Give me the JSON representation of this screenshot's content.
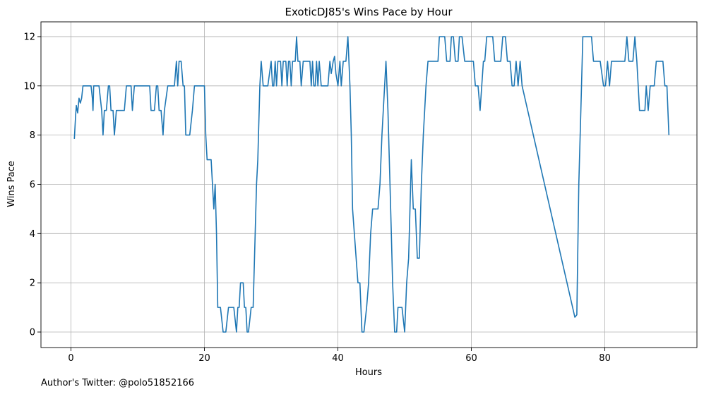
{
  "credit": "Author's Twitter: @polo51852166",
  "chart_data": {
    "type": "line",
    "title": "ExoticDJ85's Wins Pace by Hour",
    "xlabel": "Hours",
    "ylabel": "Wins Pace",
    "xlim": [
      -4.5,
      93.8
    ],
    "ylim": [
      -0.63,
      12.6
    ],
    "xticks": [
      0,
      20,
      40,
      60,
      80
    ],
    "yticks": [
      0,
      2,
      4,
      6,
      8,
      10,
      12
    ],
    "grid": true,
    "line_color": "#1f77b4",
    "series": [
      {
        "name": "",
        "points": [
          [
            0.5,
            7.85
          ],
          [
            0.7,
            8.8
          ],
          [
            0.8,
            9.2
          ],
          [
            1.0,
            8.9
          ],
          [
            1.2,
            9.5
          ],
          [
            1.4,
            9.3
          ],
          [
            1.6,
            9.5
          ],
          [
            1.8,
            10
          ],
          [
            2.5,
            10
          ],
          [
            3.0,
            10
          ],
          [
            3.2,
            9.5
          ],
          [
            3.3,
            9
          ],
          [
            3.4,
            10
          ],
          [
            4.2,
            10
          ],
          [
            4.6,
            9
          ],
          [
            4.8,
            8
          ],
          [
            5.0,
            9
          ],
          [
            5.3,
            9
          ],
          [
            5.6,
            10
          ],
          [
            5.8,
            10
          ],
          [
            6.0,
            9
          ],
          [
            6.3,
            9
          ],
          [
            6.5,
            8
          ],
          [
            6.8,
            9
          ],
          [
            7.5,
            9
          ],
          [
            8.0,
            9
          ],
          [
            8.3,
            10
          ],
          [
            8.8,
            10
          ],
          [
            9.0,
            10
          ],
          [
            9.2,
            9
          ],
          [
            9.5,
            10
          ],
          [
            10.0,
            10
          ],
          [
            11.0,
            10
          ],
          [
            11.5,
            10
          ],
          [
            11.8,
            10
          ],
          [
            12.0,
            9
          ],
          [
            12.5,
            9
          ],
          [
            12.8,
            10
          ],
          [
            13.0,
            10
          ],
          [
            13.2,
            9
          ],
          [
            13.5,
            9
          ],
          [
            13.8,
            8
          ],
          [
            14.0,
            9
          ],
          [
            14.5,
            10
          ],
          [
            15.0,
            10
          ],
          [
            15.5,
            10
          ],
          [
            15.8,
            11
          ],
          [
            16.0,
            10
          ],
          [
            16.2,
            11
          ],
          [
            16.5,
            11
          ],
          [
            16.8,
            10
          ],
          [
            17.0,
            10
          ],
          [
            17.2,
            8
          ],
          [
            17.5,
            8
          ],
          [
            17.8,
            8
          ],
          [
            18.2,
            9
          ],
          [
            18.5,
            10
          ],
          [
            19.0,
            10
          ],
          [
            20.0,
            10
          ],
          [
            20.2,
            8
          ],
          [
            20.4,
            7
          ],
          [
            20.6,
            7
          ],
          [
            21.0,
            7
          ],
          [
            21.2,
            6
          ],
          [
            21.4,
            5
          ],
          [
            21.6,
            6
          ],
          [
            21.8,
            4
          ],
          [
            22.0,
            1
          ],
          [
            22.4,
            1
          ],
          [
            22.8,
            0
          ],
          [
            23.2,
            0
          ],
          [
            23.6,
            1
          ],
          [
            24.0,
            1
          ],
          [
            24.4,
            1
          ],
          [
            24.8,
            0
          ],
          [
            25.0,
            1
          ],
          [
            25.2,
            1
          ],
          [
            25.4,
            2
          ],
          [
            25.8,
            2
          ],
          [
            26.0,
            1
          ],
          [
            26.2,
            1
          ],
          [
            26.4,
            0
          ],
          [
            26.6,
            0
          ],
          [
            27.0,
            1
          ],
          [
            27.3,
            1
          ],
          [
            27.8,
            6
          ],
          [
            28.0,
            7
          ],
          [
            28.3,
            10
          ],
          [
            28.5,
            11
          ],
          [
            28.8,
            10
          ],
          [
            29.0,
            10
          ],
          [
            29.5,
            10
          ],
          [
            30.0,
            11
          ],
          [
            30.2,
            10
          ],
          [
            30.4,
            10
          ],
          [
            30.6,
            11
          ],
          [
            30.8,
            10
          ],
          [
            31.0,
            11
          ],
          [
            31.4,
            11
          ],
          [
            31.6,
            10
          ],
          [
            31.8,
            11
          ],
          [
            32.2,
            11
          ],
          [
            32.4,
            10
          ],
          [
            32.6,
            11
          ],
          [
            32.8,
            11
          ],
          [
            33.0,
            10
          ],
          [
            33.2,
            11
          ],
          [
            33.6,
            11
          ],
          [
            33.8,
            12
          ],
          [
            34.0,
            11
          ],
          [
            34.3,
            11
          ],
          [
            34.5,
            10
          ],
          [
            34.8,
            11
          ],
          [
            35.2,
            11
          ],
          [
            35.5,
            11
          ],
          [
            35.8,
            11
          ],
          [
            36.0,
            10
          ],
          [
            36.2,
            11
          ],
          [
            36.4,
            10
          ],
          [
            36.6,
            10
          ],
          [
            36.8,
            11
          ],
          [
            37.0,
            10
          ],
          [
            37.2,
            11
          ],
          [
            37.5,
            10
          ],
          [
            38.0,
            10
          ],
          [
            38.5,
            10
          ],
          [
            38.8,
            11
          ],
          [
            39.0,
            10.5
          ],
          [
            39.3,
            11
          ],
          [
            39.5,
            11.2
          ],
          [
            39.7,
            10.5
          ],
          [
            40.0,
            10
          ],
          [
            40.3,
            11
          ],
          [
            40.5,
            10
          ],
          [
            40.8,
            11
          ],
          [
            41.2,
            11
          ],
          [
            41.5,
            12
          ],
          [
            41.8,
            10
          ],
          [
            42.0,
            8
          ],
          [
            42.2,
            5
          ],
          [
            42.6,
            3.5
          ],
          [
            43.0,
            2
          ],
          [
            43.3,
            2
          ],
          [
            43.6,
            0
          ],
          [
            43.9,
            0
          ],
          [
            44.3,
            1
          ],
          [
            44.6,
            2
          ],
          [
            44.9,
            4
          ],
          [
            45.2,
            5
          ],
          [
            45.6,
            5
          ],
          [
            46.0,
            5
          ],
          [
            46.3,
            6
          ],
          [
            46.6,
            8
          ],
          [
            47.0,
            10
          ],
          [
            47.2,
            11
          ],
          [
            47.5,
            9
          ],
          [
            47.8,
            6
          ],
          [
            48.0,
            4
          ],
          [
            48.2,
            2
          ],
          [
            48.5,
            0
          ],
          [
            48.8,
            0
          ],
          [
            49.0,
            1
          ],
          [
            49.3,
            1
          ],
          [
            49.6,
            1
          ],
          [
            50.0,
            0
          ],
          [
            50.3,
            2
          ],
          [
            50.6,
            3
          ],
          [
            51.0,
            7
          ],
          [
            51.3,
            5
          ],
          [
            51.6,
            5
          ],
          [
            51.9,
            3
          ],
          [
            52.2,
            3
          ],
          [
            52.5,
            6
          ],
          [
            52.8,
            8
          ],
          [
            53.2,
            10
          ],
          [
            53.5,
            11
          ],
          [
            54.0,
            11
          ],
          [
            55.0,
            11
          ],
          [
            55.2,
            12
          ],
          [
            55.6,
            12
          ],
          [
            56.0,
            12
          ],
          [
            56.3,
            11
          ],
          [
            56.8,
            11
          ],
          [
            57.0,
            12
          ],
          [
            57.3,
            12
          ],
          [
            57.6,
            11
          ],
          [
            58.0,
            11
          ],
          [
            58.2,
            12
          ],
          [
            58.6,
            12
          ],
          [
            59.0,
            11
          ],
          [
            59.5,
            11
          ],
          [
            60.0,
            11
          ],
          [
            60.3,
            11
          ],
          [
            60.6,
            10
          ],
          [
            61.0,
            10
          ],
          [
            61.3,
            9
          ],
          [
            61.8,
            11
          ],
          [
            62.0,
            11
          ],
          [
            62.3,
            12
          ],
          [
            62.8,
            12
          ],
          [
            63.2,
            12
          ],
          [
            63.5,
            11
          ],
          [
            64.0,
            11
          ],
          [
            64.4,
            11
          ],
          [
            64.7,
            12
          ],
          [
            65.1,
            12
          ],
          [
            65.4,
            11
          ],
          [
            65.8,
            11
          ],
          [
            66.1,
            10
          ],
          [
            66.4,
            10
          ],
          [
            66.7,
            11
          ],
          [
            67.0,
            10
          ],
          [
            67.3,
            11
          ],
          [
            67.6,
            10
          ],
          [
            75.5,
            0.6
          ],
          [
            75.8,
            0.7
          ],
          [
            76.1,
            6
          ],
          [
            76.4,
            9
          ],
          [
            76.7,
            12
          ],
          [
            77.5,
            12
          ],
          [
            78.0,
            12
          ],
          [
            78.3,
            11
          ],
          [
            78.8,
            11
          ],
          [
            79.3,
            11
          ],
          [
            79.8,
            10
          ],
          [
            80.1,
            10
          ],
          [
            80.4,
            11
          ],
          [
            80.7,
            10
          ],
          [
            81.0,
            11
          ],
          [
            81.5,
            11
          ],
          [
            82.0,
            11
          ],
          [
            82.5,
            11
          ],
          [
            83.0,
            11
          ],
          [
            83.3,
            12
          ],
          [
            83.6,
            11
          ],
          [
            83.9,
            11
          ],
          [
            84.2,
            11
          ],
          [
            84.5,
            12
          ],
          [
            84.8,
            11
          ],
          [
            85.2,
            9
          ],
          [
            85.6,
            9
          ],
          [
            86.0,
            9
          ],
          [
            86.2,
            10
          ],
          [
            86.5,
            9
          ],
          [
            86.8,
            10
          ],
          [
            87.1,
            10
          ],
          [
            87.4,
            10
          ],
          [
            87.7,
            11
          ],
          [
            88.2,
            11
          ],
          [
            88.7,
            11
          ],
          [
            89.0,
            10
          ],
          [
            89.3,
            10
          ],
          [
            89.6,
            8
          ]
        ]
      }
    ]
  }
}
